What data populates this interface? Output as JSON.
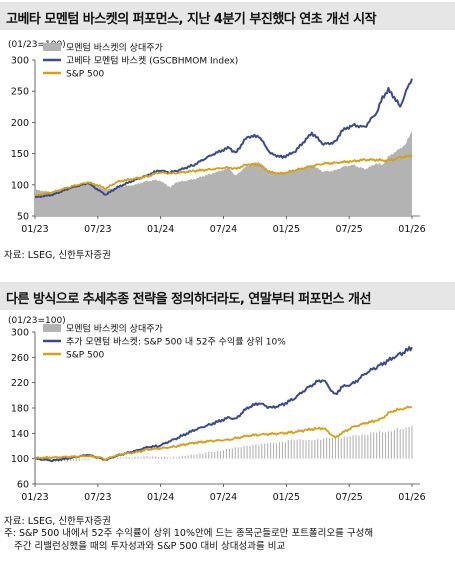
{
  "chart1": {
    "title": "고베타 모멘텀 바스켓의 퍼포먼스, 지난 4분기 부진했다 연초 개선 시작",
    "source": "자료: LSEG, 신한투자증권",
    "chart_data": {
      "type": "line",
      "title": "고베타 모멘텀 바스켓의 퍼포먼스, 지난 4분기 부진했다 연초 개선 시작",
      "ylabel": "(01/23=100)",
      "ylim": [
        50,
        300
      ],
      "yticks": [
        "300",
        "250",
        "200",
        "150",
        "100",
        "50"
      ],
      "xticks": [
        "01/23",
        "07/23",
        "01/24",
        "07/24",
        "01/25",
        "07/25",
        "01/26"
      ],
      "grid": false,
      "legend_position": "top-left",
      "series": [
        {
          "name": "모멘텀 바스켓의 상대주가",
          "kind": "area",
          "color": "#b3b3b3",
          "points": [
            [
              0,
              92
            ],
            [
              3,
              88
            ],
            [
              6,
              97
            ],
            [
              9,
              103
            ],
            [
              12,
              92
            ],
            [
              14,
              96
            ],
            [
              17,
              100
            ],
            [
              19,
              106
            ],
            [
              21,
              108
            ],
            [
              23,
              96
            ],
            [
              24,
              104
            ],
            [
              27,
              109
            ],
            [
              30,
              118
            ],
            [
              33,
              127
            ],
            [
              34,
              114
            ],
            [
              36,
              131
            ],
            [
              38,
              137
            ],
            [
              40,
              119
            ],
            [
              42,
              120
            ],
            [
              44,
              122
            ],
            [
              47,
              131
            ],
            [
              49,
              121
            ],
            [
              51,
              123
            ],
            [
              52,
              128
            ],
            [
              54,
              132
            ],
            [
              56,
              125
            ],
            [
              58,
              134
            ],
            [
              59,
              132
            ],
            [
              60,
              145
            ],
            [
              61,
              152
            ],
            [
              62,
              158
            ],
            [
              63,
              167
            ],
            [
              64,
              186
            ]
          ]
        },
        {
          "name": "고베타 모멘텀 바스켓 (GSCBHMOM Index)",
          "kind": "line",
          "color": "#3a4a8c",
          "points": [
            [
              0,
              80
            ],
            [
              3,
              84
            ],
            [
              6,
              95
            ],
            [
              9,
              103
            ],
            [
              11,
              90
            ],
            [
              12,
              84
            ],
            [
              14,
              96
            ],
            [
              17,
              108
            ],
            [
              19,
              115
            ],
            [
              21,
              123
            ],
            [
              23,
              120
            ],
            [
              24,
              122
            ],
            [
              27,
              132
            ],
            [
              30,
              148
            ],
            [
              33,
              160
            ],
            [
              34,
              150
            ],
            [
              36,
              177
            ],
            [
              38,
              178
            ],
            [
              40,
              150
            ],
            [
              42,
              144
            ],
            [
              44,
              152
            ],
            [
              47,
              183
            ],
            [
              49,
              165
            ],
            [
              51,
              168
            ],
            [
              52,
              186
            ],
            [
              54,
              196
            ],
            [
              56,
              192
            ],
            [
              57,
              205
            ],
            [
              58,
              215
            ],
            [
              59,
              240
            ],
            [
              60,
              252
            ],
            [
              61,
              240
            ],
            [
              62,
              225
            ],
            [
              63,
              250
            ],
            [
              64,
              270
            ]
          ]
        },
        {
          "name": "S&P 500",
          "kind": "line",
          "color": "#d4a017",
          "points": [
            [
              0,
              83
            ],
            [
              3,
              88
            ],
            [
              6,
              97
            ],
            [
              9,
              104
            ],
            [
              11,
              98
            ],
            [
              12,
              94
            ],
            [
              14,
              105
            ],
            [
              17,
              110
            ],
            [
              19,
              113
            ],
            [
              21,
              120
            ],
            [
              23,
              118
            ],
            [
              24,
              119
            ],
            [
              27,
              122
            ],
            [
              30,
              125
            ],
            [
              33,
              128
            ],
            [
              34,
              125
            ],
            [
              36,
              133
            ],
            [
              38,
              132
            ],
            [
              40,
              120
            ],
            [
              42,
              118
            ],
            [
              44,
              123
            ],
            [
              47,
              130
            ],
            [
              49,
              134
            ],
            [
              51,
              135
            ],
            [
              52,
              136
            ],
            [
              54,
              138
            ],
            [
              56,
              140
            ],
            [
              58,
              140
            ],
            [
              59,
              139
            ],
            [
              60,
              139
            ],
            [
              61,
              141
            ],
            [
              62,
              144
            ],
            [
              63,
              145
            ],
            [
              64,
              147
            ]
          ]
        }
      ]
    }
  },
  "chart2": {
    "title": "다른 방식으로 추세추종 전략을 정의하더라도, 연말부터 퍼포먼스 개선",
    "source": "자료: LSEG, 신한투자증권",
    "note_line1": "주: S&P 500 내에서 52주 수익률이 상위 10%안에 드는 종목군들로만 포트폴리오를 구성해",
    "note_line2": "주간 리밸런싱했을 때의 투자성과와 S&P 500 대비 상대성과를 비교",
    "chart_data": {
      "type": "line",
      "title": "다른 방식으로 추세추종 전략을 정의하더라도, 연말부터 퍼포먼스 개선",
      "ylabel": "(01/23=100)",
      "ylim": [
        60,
        300
      ],
      "yticks": [
        "300",
        "260",
        "220",
        "180",
        "140",
        "100",
        "60"
      ],
      "xticks": [
        "01/23",
        "07/23",
        "01/24",
        "07/24",
        "01/25",
        "07/25",
        "01/26"
      ],
      "grid": false,
      "legend_position": "top-left",
      "series": [
        {
          "name": "모멘텀 바스켓의 상대주가",
          "kind": "bars",
          "color": "#b3b3b3",
          "points": [
            [
              0,
              98
            ],
            [
              5,
              96
            ],
            [
              10,
              99
            ],
            [
              13,
              101
            ],
            [
              17,
              102
            ],
            [
              20,
              104
            ],
            [
              23,
              102
            ],
            [
              26,
              106
            ],
            [
              29,
              110
            ],
            [
              32,
              113
            ],
            [
              35,
              118
            ],
            [
              38,
              122
            ],
            [
              40,
              125
            ],
            [
              43,
              128
            ],
            [
              46,
              130
            ],
            [
              49,
              131
            ],
            [
              52,
              134
            ],
            [
              55,
              138
            ],
            [
              57,
              140
            ],
            [
              59,
              142
            ],
            [
              61,
              145
            ],
            [
              62,
              148
            ],
            [
              64,
              152
            ]
          ]
        },
        {
          "name": "추가 모멘텀 바스켓: S&P 500 내 52주 수익률 상위 10%",
          "kind": "line",
          "color": "#3a4a8c",
          "points": [
            [
              0,
              100
            ],
            [
              3,
              97
            ],
            [
              6,
              101
            ],
            [
              9,
              106
            ],
            [
              11,
              101
            ],
            [
              12,
              98
            ],
            [
              14,
              105
            ],
            [
              17,
              112
            ],
            [
              19,
              118
            ],
            [
              21,
              120
            ],
            [
              23,
              128
            ],
            [
              24,
              132
            ],
            [
              27,
              145
            ],
            [
              30,
              155
            ],
            [
              33,
              165
            ],
            [
              34,
              162
            ],
            [
              36,
              180
            ],
            [
              38,
              188
            ],
            [
              40,
              180
            ],
            [
              42,
              185
            ],
            [
              44,
              195
            ],
            [
              46,
              210
            ],
            [
              48,
              222
            ],
            [
              49,
              224
            ],
            [
              51,
              200
            ],
            [
              52,
              213
            ],
            [
              54,
              218
            ],
            [
              56,
              234
            ],
            [
              58,
              245
            ],
            [
              59,
              250
            ],
            [
              60,
              255
            ],
            [
              61,
              260
            ],
            [
              62,
              265
            ],
            [
              63,
              270
            ],
            [
              64,
              276
            ]
          ]
        },
        {
          "name": "S&P 500",
          "kind": "line",
          "color": "#d4a017",
          "points": [
            [
              0,
              101
            ],
            [
              3,
              102
            ],
            [
              6,
              103
            ],
            [
              9,
              104
            ],
            [
              11,
              102
            ],
            [
              12,
              99
            ],
            [
              14,
              106
            ],
            [
              17,
              110
            ],
            [
              19,
              114
            ],
            [
              21,
              116
            ],
            [
              23,
              118
            ],
            [
              24,
              120
            ],
            [
              27,
              125
            ],
            [
              30,
              128
            ],
            [
              33,
              130
            ],
            [
              34,
              132
            ],
            [
              36,
              136
            ],
            [
              38,
              138
            ],
            [
              40,
              139
            ],
            [
              42,
              140
            ],
            [
              44,
              142
            ],
            [
              46,
              145
            ],
            [
              48,
              148
            ],
            [
              49,
              148
            ],
            [
              51,
              133
            ],
            [
              52,
              140
            ],
            [
              54,
              150
            ],
            [
              56,
              156
            ],
            [
              58,
              160
            ],
            [
              59,
              164
            ],
            [
              60,
              172
            ],
            [
              61,
              176
            ],
            [
              62,
              178
            ],
            [
              63,
              180
            ],
            [
              64,
              182
            ]
          ]
        }
      ]
    }
  }
}
